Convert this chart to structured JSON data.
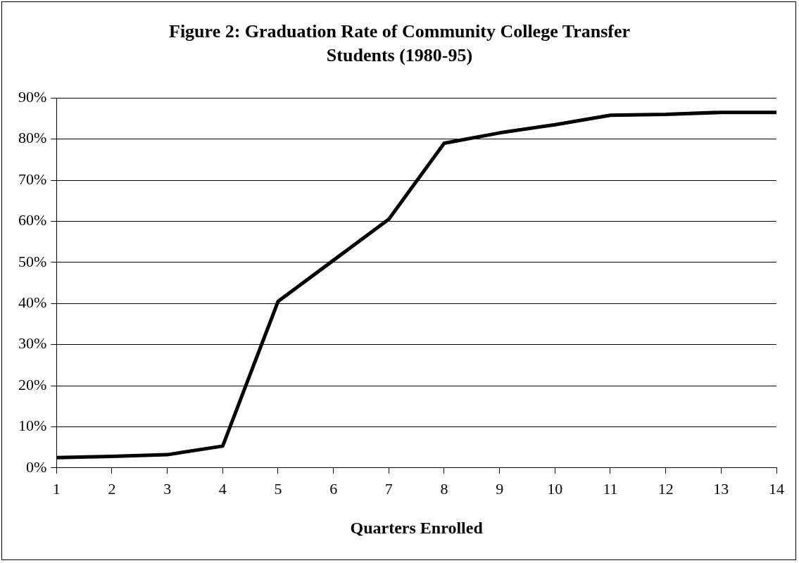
{
  "chart_data": {
    "type": "line",
    "title": "Figure 2: Graduation Rate of Community College Transfer Students (1980-95)",
    "xlabel": "Quarters Enrolled",
    "x": [
      1,
      2,
      3,
      4,
      5,
      6,
      7,
      8,
      9,
      10,
      11,
      12,
      13,
      14
    ],
    "series": [
      {
        "color": "#000000",
        "values": [
          2.5,
          2.8,
          3.2,
          5.3,
          40.5,
          50.5,
          60.5,
          79,
          81.5,
          83.5,
          85.8,
          86,
          86.5,
          86.5
        ]
      }
    ],
    "xlim": [
      1,
      14
    ],
    "xticks": [
      1,
      2,
      3,
      4,
      5,
      6,
      7,
      8,
      9,
      10,
      11,
      12,
      13,
      14
    ],
    "ylim": [
      0,
      90
    ],
    "yticks": [
      {
        "value": 0,
        "label": "0%"
      },
      {
        "value": 10,
        "label": "10%"
      },
      {
        "value": 20,
        "label": "20%"
      },
      {
        "value": 30,
        "label": "30%"
      },
      {
        "value": 40,
        "label": "40%"
      },
      {
        "value": 50,
        "label": "50%"
      },
      {
        "value": 60,
        "label": "60%"
      },
      {
        "value": 70,
        "label": "70%"
      },
      {
        "value": 80,
        "label": "80%"
      },
      {
        "value": 90,
        "label": "90%"
      }
    ],
    "grid": "y",
    "legend": false,
    "marker": "none",
    "line_style": "solid"
  }
}
